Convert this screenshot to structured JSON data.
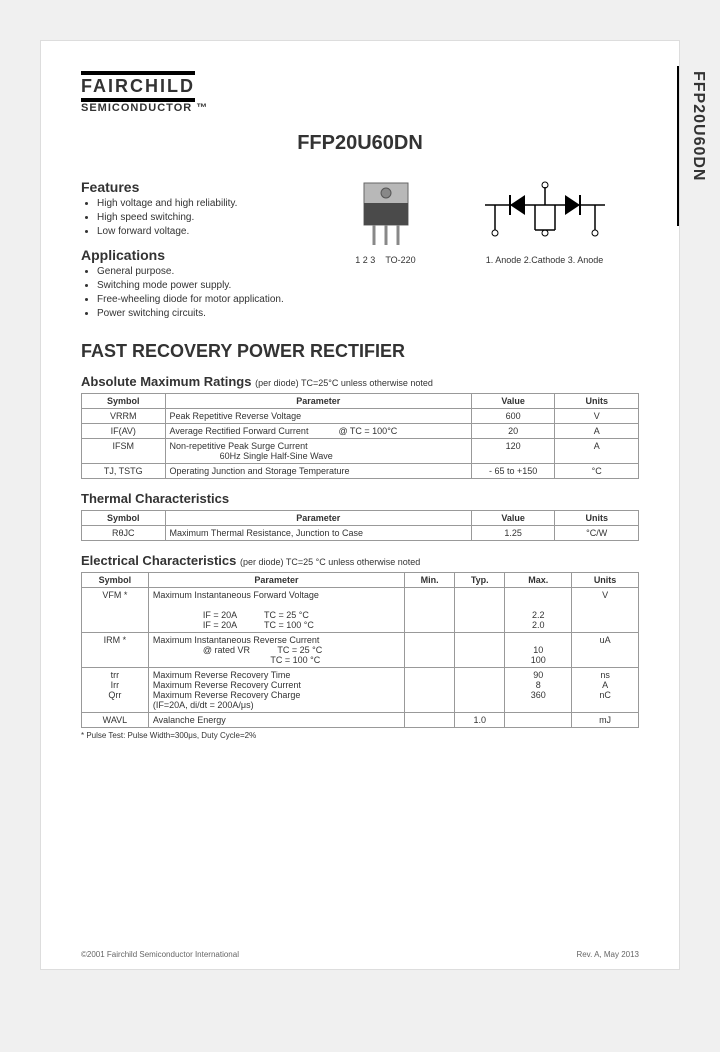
{
  "logo": {
    "name": "FAIRCHILD",
    "sub": "SEMICONDUCTOR ™"
  },
  "part_number": "FFP20U60DN",
  "side_label": "FFP20U60DN",
  "features": {
    "heading": "Features",
    "items": [
      "High voltage and high reliability.",
      "High speed switching.",
      "Low forward voltage."
    ]
  },
  "applications": {
    "heading": "Applications",
    "items": [
      "General purpose.",
      "Switching mode power supply.",
      "Free-wheeling diode for motor application.",
      "Power switching circuits."
    ]
  },
  "package": {
    "pins": "1 2 3",
    "type": "TO-220"
  },
  "pinout": {
    "labels": "1. Anode  2.Cathode  3. Anode"
  },
  "category_title": "FAST RECOVERY POWER RECTIFIER",
  "abs_max": {
    "title": "Absolute Maximum Ratings",
    "note": "(per diode) TC=25°C unless otherwise noted",
    "headers": [
      "Symbol",
      "Parameter",
      "Value",
      "Units"
    ],
    "rows": [
      [
        "VRRM",
        "Peak Repetitive Reverse Voltage",
        "600",
        "V"
      ],
      [
        "IF(AV)",
        "Average Rectified Forward Current            @ TC = 100°C",
        "20",
        "A"
      ],
      [
        "IFSM",
        "Non-repetitive Peak Surge Current\n                    60Hz Single Half-Sine Wave",
        "120",
        "A"
      ],
      [
        "TJ, TSTG",
        "Operating Junction and Storage Temperature",
        "- 65 to +150",
        "°C"
      ]
    ]
  },
  "thermal": {
    "title": "Thermal Characteristics",
    "headers": [
      "Symbol",
      "Parameter",
      "Value",
      "Units"
    ],
    "rows": [
      [
        "RθJC",
        "Maximum Thermal Resistance, Junction to Case",
        "1.25",
        "°C/W"
      ]
    ]
  },
  "electrical": {
    "title": "Electrical Characteristics",
    "note": "(per diode) TC=25 °C unless otherwise noted",
    "headers": [
      "Symbol",
      "Parameter",
      "Min.",
      "Typ.",
      "Max.",
      "Units"
    ],
    "rows": [
      {
        "sym": "VFM *",
        "param": "Maximum Instantaneous Forward Voltage\n\n                    IF = 20A           TC = 25 °C\n                    IF = 20A           TC = 100 °C",
        "min": "",
        "typ": "",
        "max": "\n\n2.2\n2.0",
        "units": "V"
      },
      {
        "sym": "IRM *",
        "param": "Maximum Instantaneous Reverse Current\n                    @ rated VR           TC = 25 °C\n                                               TC = 100 °C",
        "min": "",
        "typ": "",
        "max": "\n10\n100",
        "units": "uA"
      },
      {
        "sym": "trr\nIrr\nQrr",
        "param": "Maximum Reverse Recovery Time\nMaximum Reverse Recovery Current\nMaximum Reverse Recovery Charge\n(IF=20A, di/dt = 200A/μs)",
        "min": "",
        "typ": "",
        "max": "90\n8\n360",
        "units": "ns\nA\nnC"
      },
      {
        "sym": "WAVL",
        "param": "Avalanche Energy",
        "min": "",
        "typ": "1.0",
        "max": "",
        "units": "mJ"
      }
    ],
    "footnote": "* Pulse Test: Pulse Width=300μs, Duty Cycle=2%"
  },
  "footer": {
    "left": "©2001 Fairchild Semiconductor International",
    "right": "Rev. A, May 2013"
  },
  "colors": {
    "text": "#333333",
    "border": "#999999",
    "bg": "#ffffff"
  },
  "col_widths": {
    "abs": [
      "15%",
      "55%",
      "15%",
      "15%"
    ],
    "elec": [
      "12%",
      "46%",
      "9%",
      "9%",
      "12%",
      "12%"
    ]
  }
}
